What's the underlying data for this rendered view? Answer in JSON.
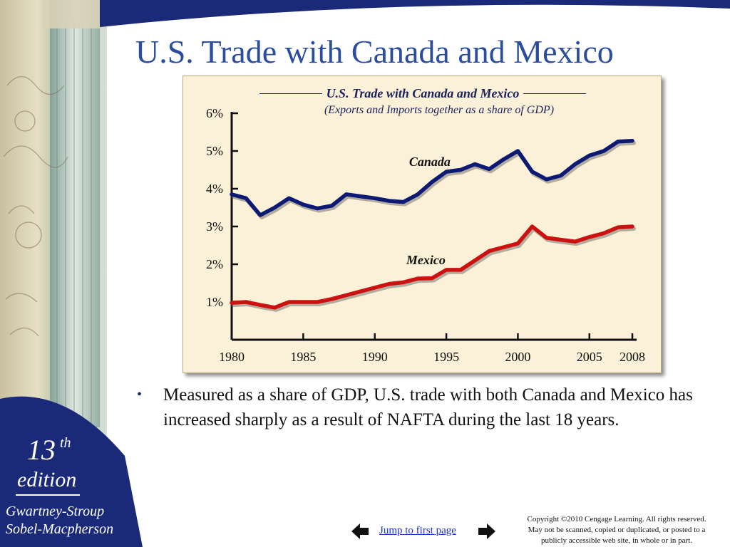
{
  "slide": {
    "title": "U.S. Trade with Canada and Mexico",
    "bullet": "Measured as a share of GDP, U.S. trade with both Canada and Mexico has increased sharply as a result of NAFTA during the last 18 years."
  },
  "sidebar": {
    "edition_number": "13",
    "edition_suffix": "th",
    "edition_word": "edition",
    "authors_line1": "Gwartney-Stroup",
    "authors_line2": "Sobel-Macpherson"
  },
  "footer": {
    "jump_label": "Jump to first page",
    "copyright_line1": "Copyright ©2010 Cengage Learning. All rights reserved.",
    "copyright_line2": "May not be scanned, copied or duplicated, or posted to a",
    "copyright_line3": "publicly accessible web site, in whole or in part."
  },
  "colors": {
    "title": "#2a4d9e",
    "canada": "#0d1a73",
    "mexico": "#cc1111",
    "panel": "#fbf0d8",
    "header_band": "#1b2a78"
  },
  "icons": {
    "prev": "left-arrow-icon",
    "next": "right-arrow-icon"
  },
  "chart_data": {
    "type": "line",
    "title": "U.S. Trade with Canada and Mexico",
    "subtitle": "(Exports and Imports together as a share of GDP)",
    "xlabel": "",
    "ylabel": "",
    "xlim": [
      1980,
      2008
    ],
    "ylim": [
      0,
      6
    ],
    "yticks": [
      1,
      2,
      3,
      4,
      5,
      6
    ],
    "ytick_labels": [
      "1%",
      "2%",
      "3%",
      "4%",
      "5%",
      "6%"
    ],
    "xticks": [
      1980,
      1985,
      1990,
      1995,
      2000,
      2005,
      2008
    ],
    "xtick_labels": [
      "1980",
      "1985",
      "1990",
      "1995",
      "2000",
      "2005",
      "2008"
    ],
    "grid": false,
    "legend": "inline labels",
    "x": [
      1980,
      1981,
      1982,
      1983,
      1984,
      1985,
      1986,
      1987,
      1988,
      1989,
      1990,
      1991,
      1992,
      1993,
      1994,
      1995,
      1996,
      1997,
      1998,
      1999,
      2000,
      2001,
      2002,
      2003,
      2004,
      2005,
      2006,
      2007,
      2008
    ],
    "series": [
      {
        "name": "Canada",
        "color": "#0d1a73",
        "values": [
          3.85,
          3.75,
          3.3,
          3.5,
          3.75,
          3.58,
          3.48,
          3.55,
          3.85,
          3.8,
          3.75,
          3.68,
          3.65,
          3.85,
          4.18,
          4.45,
          4.5,
          4.65,
          4.52,
          4.78,
          5.0,
          4.45,
          4.25,
          4.35,
          4.65,
          4.88,
          5.0,
          5.25,
          5.27
        ]
      },
      {
        "name": "Mexico",
        "color": "#cc1111",
        "values": [
          0.98,
          1.0,
          0.92,
          0.85,
          1.0,
          1.0,
          1.0,
          1.08,
          1.18,
          1.28,
          1.38,
          1.48,
          1.52,
          1.62,
          1.63,
          1.85,
          1.85,
          2.1,
          2.35,
          2.45,
          2.55,
          3.0,
          2.7,
          2.65,
          2.6,
          2.72,
          2.82,
          2.98,
          3.0
        ]
      }
    ],
    "annotations": [
      {
        "text": "Canada",
        "series": "Canada"
      },
      {
        "text": "Mexico",
        "series": "Mexico"
      }
    ]
  }
}
